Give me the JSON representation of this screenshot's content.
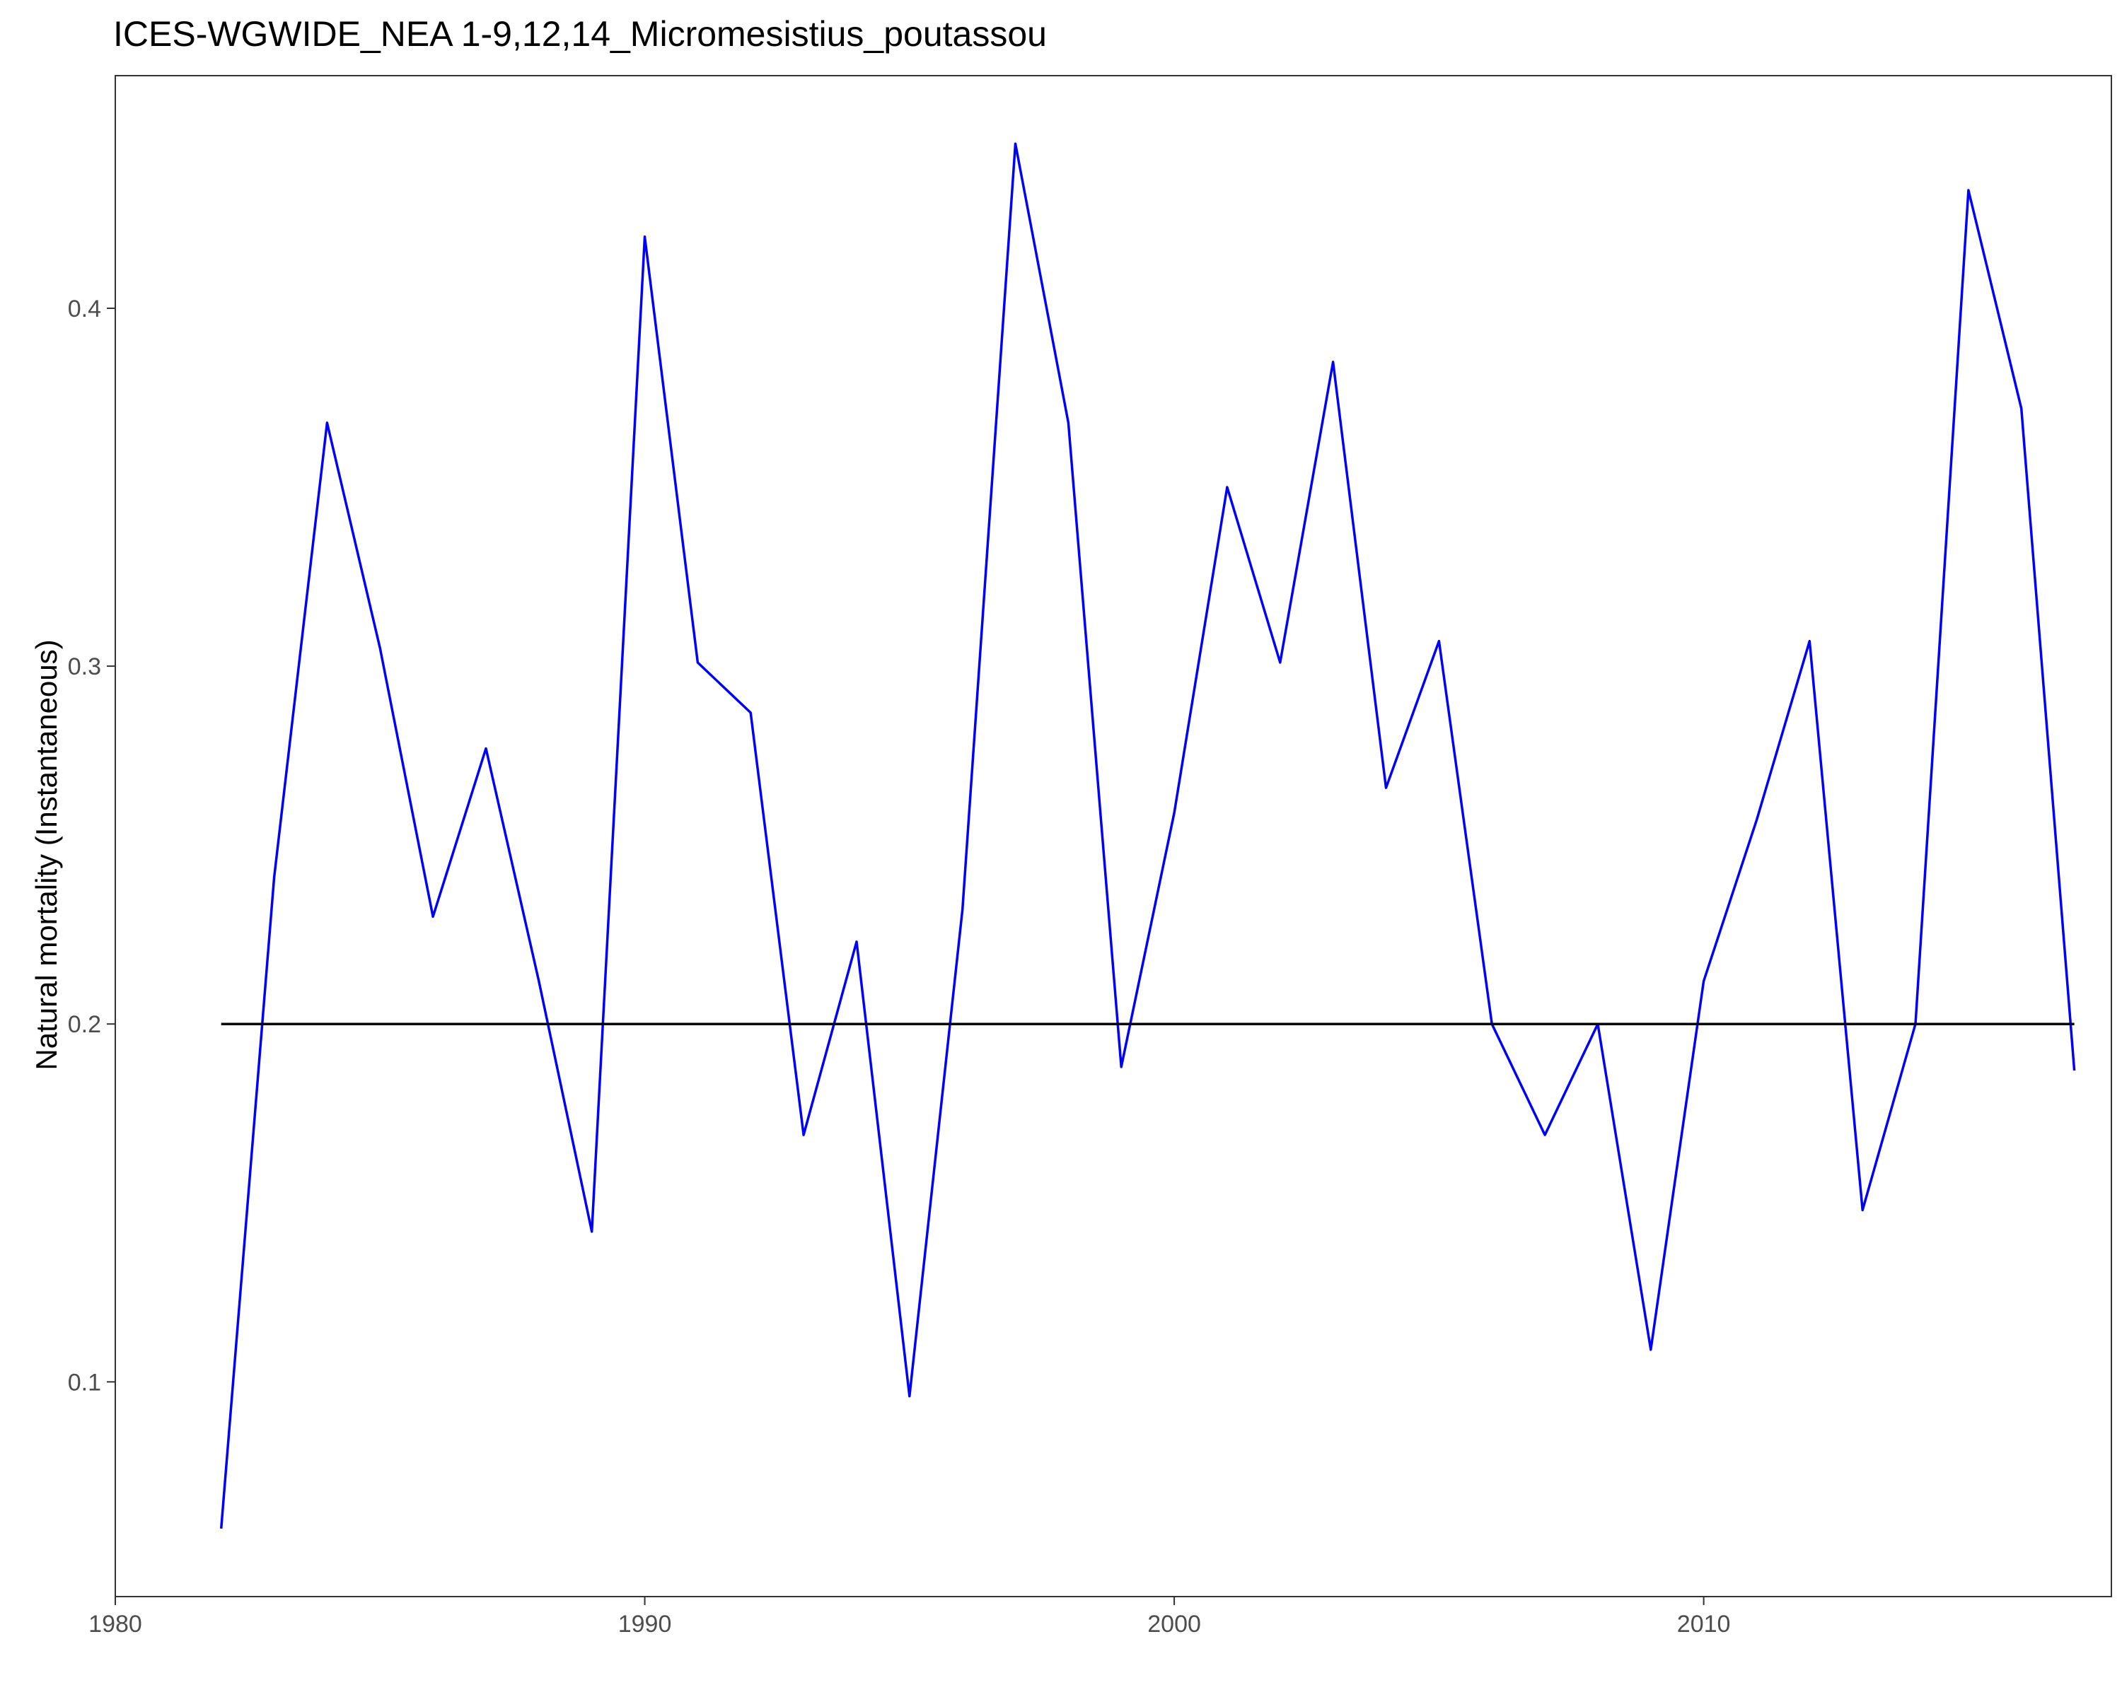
{
  "chart_data": {
    "type": "line",
    "title": "ICES-WGWIDE_NEA 1-9,12,14_Micromesistius_poutassou",
    "xlabel": "",
    "ylabel": "Natural mortality (Instantaneous)",
    "xlim": [
      1980,
      2017.7
    ],
    "ylim": [
      0.04,
      0.465
    ],
    "xticks": [
      1980,
      1990,
      2000,
      2010
    ],
    "yticks": [
      0.1,
      0.2,
      0.3,
      0.4
    ],
    "xtick_labels": [
      "1980",
      "1990",
      "2000",
      "2010"
    ],
    "ytick_labels": [
      "0.1",
      "0.2",
      "0.3",
      "0.4"
    ],
    "grid": false,
    "series": [
      {
        "color": "#0000ff",
        "x": [
          1982,
          1983,
          1984,
          1985,
          1986,
          1987,
          1988,
          1989,
          1990,
          1991,
          1992,
          1993,
          1994,
          1995,
          1996,
          1997,
          1998,
          1999,
          2000,
          2001,
          2002,
          2003,
          2004,
          2005,
          2006,
          2007,
          2008,
          2009,
          2010,
          2011,
          2012,
          2013,
          2014,
          2015,
          2016,
          2017
        ],
        "y": [
          0.059,
          0.241,
          0.368,
          0.305,
          0.23,
          0.277,
          0.212,
          0.142,
          0.42,
          0.301,
          0.287,
          0.169,
          0.223,
          0.096,
          0.232,
          0.446,
          0.368,
          0.188,
          0.259,
          0.35,
          0.301,
          0.385,
          0.266,
          0.307,
          0.2,
          0.169,
          0.2,
          0.109,
          0.212,
          0.257,
          0.307,
          0.148,
          0.2,
          0.433,
          0.372,
          0.187
        ]
      },
      {
        "color": "#000000",
        "x": [
          1982,
          2017
        ],
        "y": [
          0.2,
          0.2
        ]
      }
    ]
  }
}
